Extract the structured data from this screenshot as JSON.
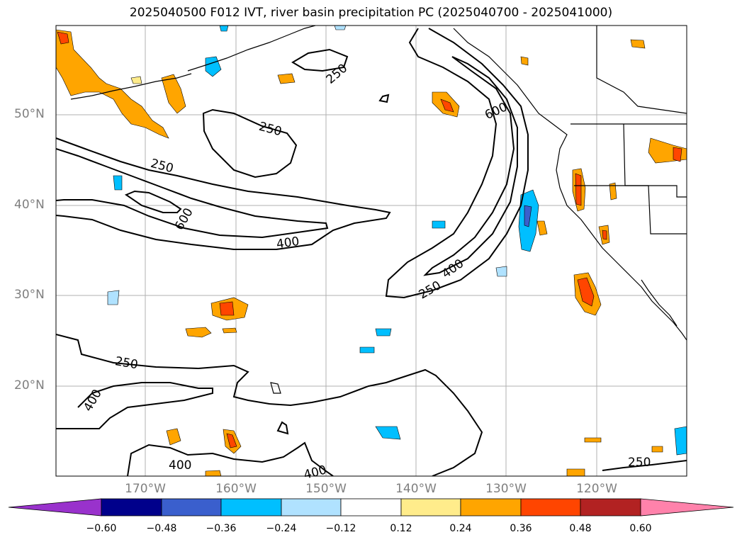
{
  "title": "2025040500 F012 IVT, river basin precipitation PC (2025040700 - 2025041000)",
  "lat_labels": [
    "50°N",
    "40°N",
    "30°N",
    "20°N"
  ],
  "lon_labels": [
    "170°W",
    "160°W",
    "150°W",
    "140°W",
    "130°W",
    "120°W"
  ],
  "contour_labels": [
    "250",
    "250",
    "250",
    "600",
    "600",
    "400",
    "400",
    "250",
    "250",
    "400",
    "400",
    "400",
    "250"
  ],
  "colorbar": {
    "ticks": [
      "−0.60",
      "−0.48",
      "−0.36",
      "−0.24",
      "−0.12",
      "0.12",
      "0.24",
      "0.36",
      "0.48",
      "0.60"
    ],
    "colors": [
      "#9932cc",
      "#00008b",
      "#3a5fcd",
      "#00bfff",
      "#b0e2ff",
      "#ffffff",
      "#ffec8b",
      "#ffa500",
      "#ff4500",
      "#b22222",
      "#ff82ab"
    ]
  },
  "legend_colors": {
    "pos_low": "#ffec8b",
    "pos_mid": "#ffa500",
    "pos_high": "#ff4500",
    "neg_low": "#b0e2ff",
    "neg_mid": "#00bfff",
    "neg_high": "#3a5fcd"
  }
}
